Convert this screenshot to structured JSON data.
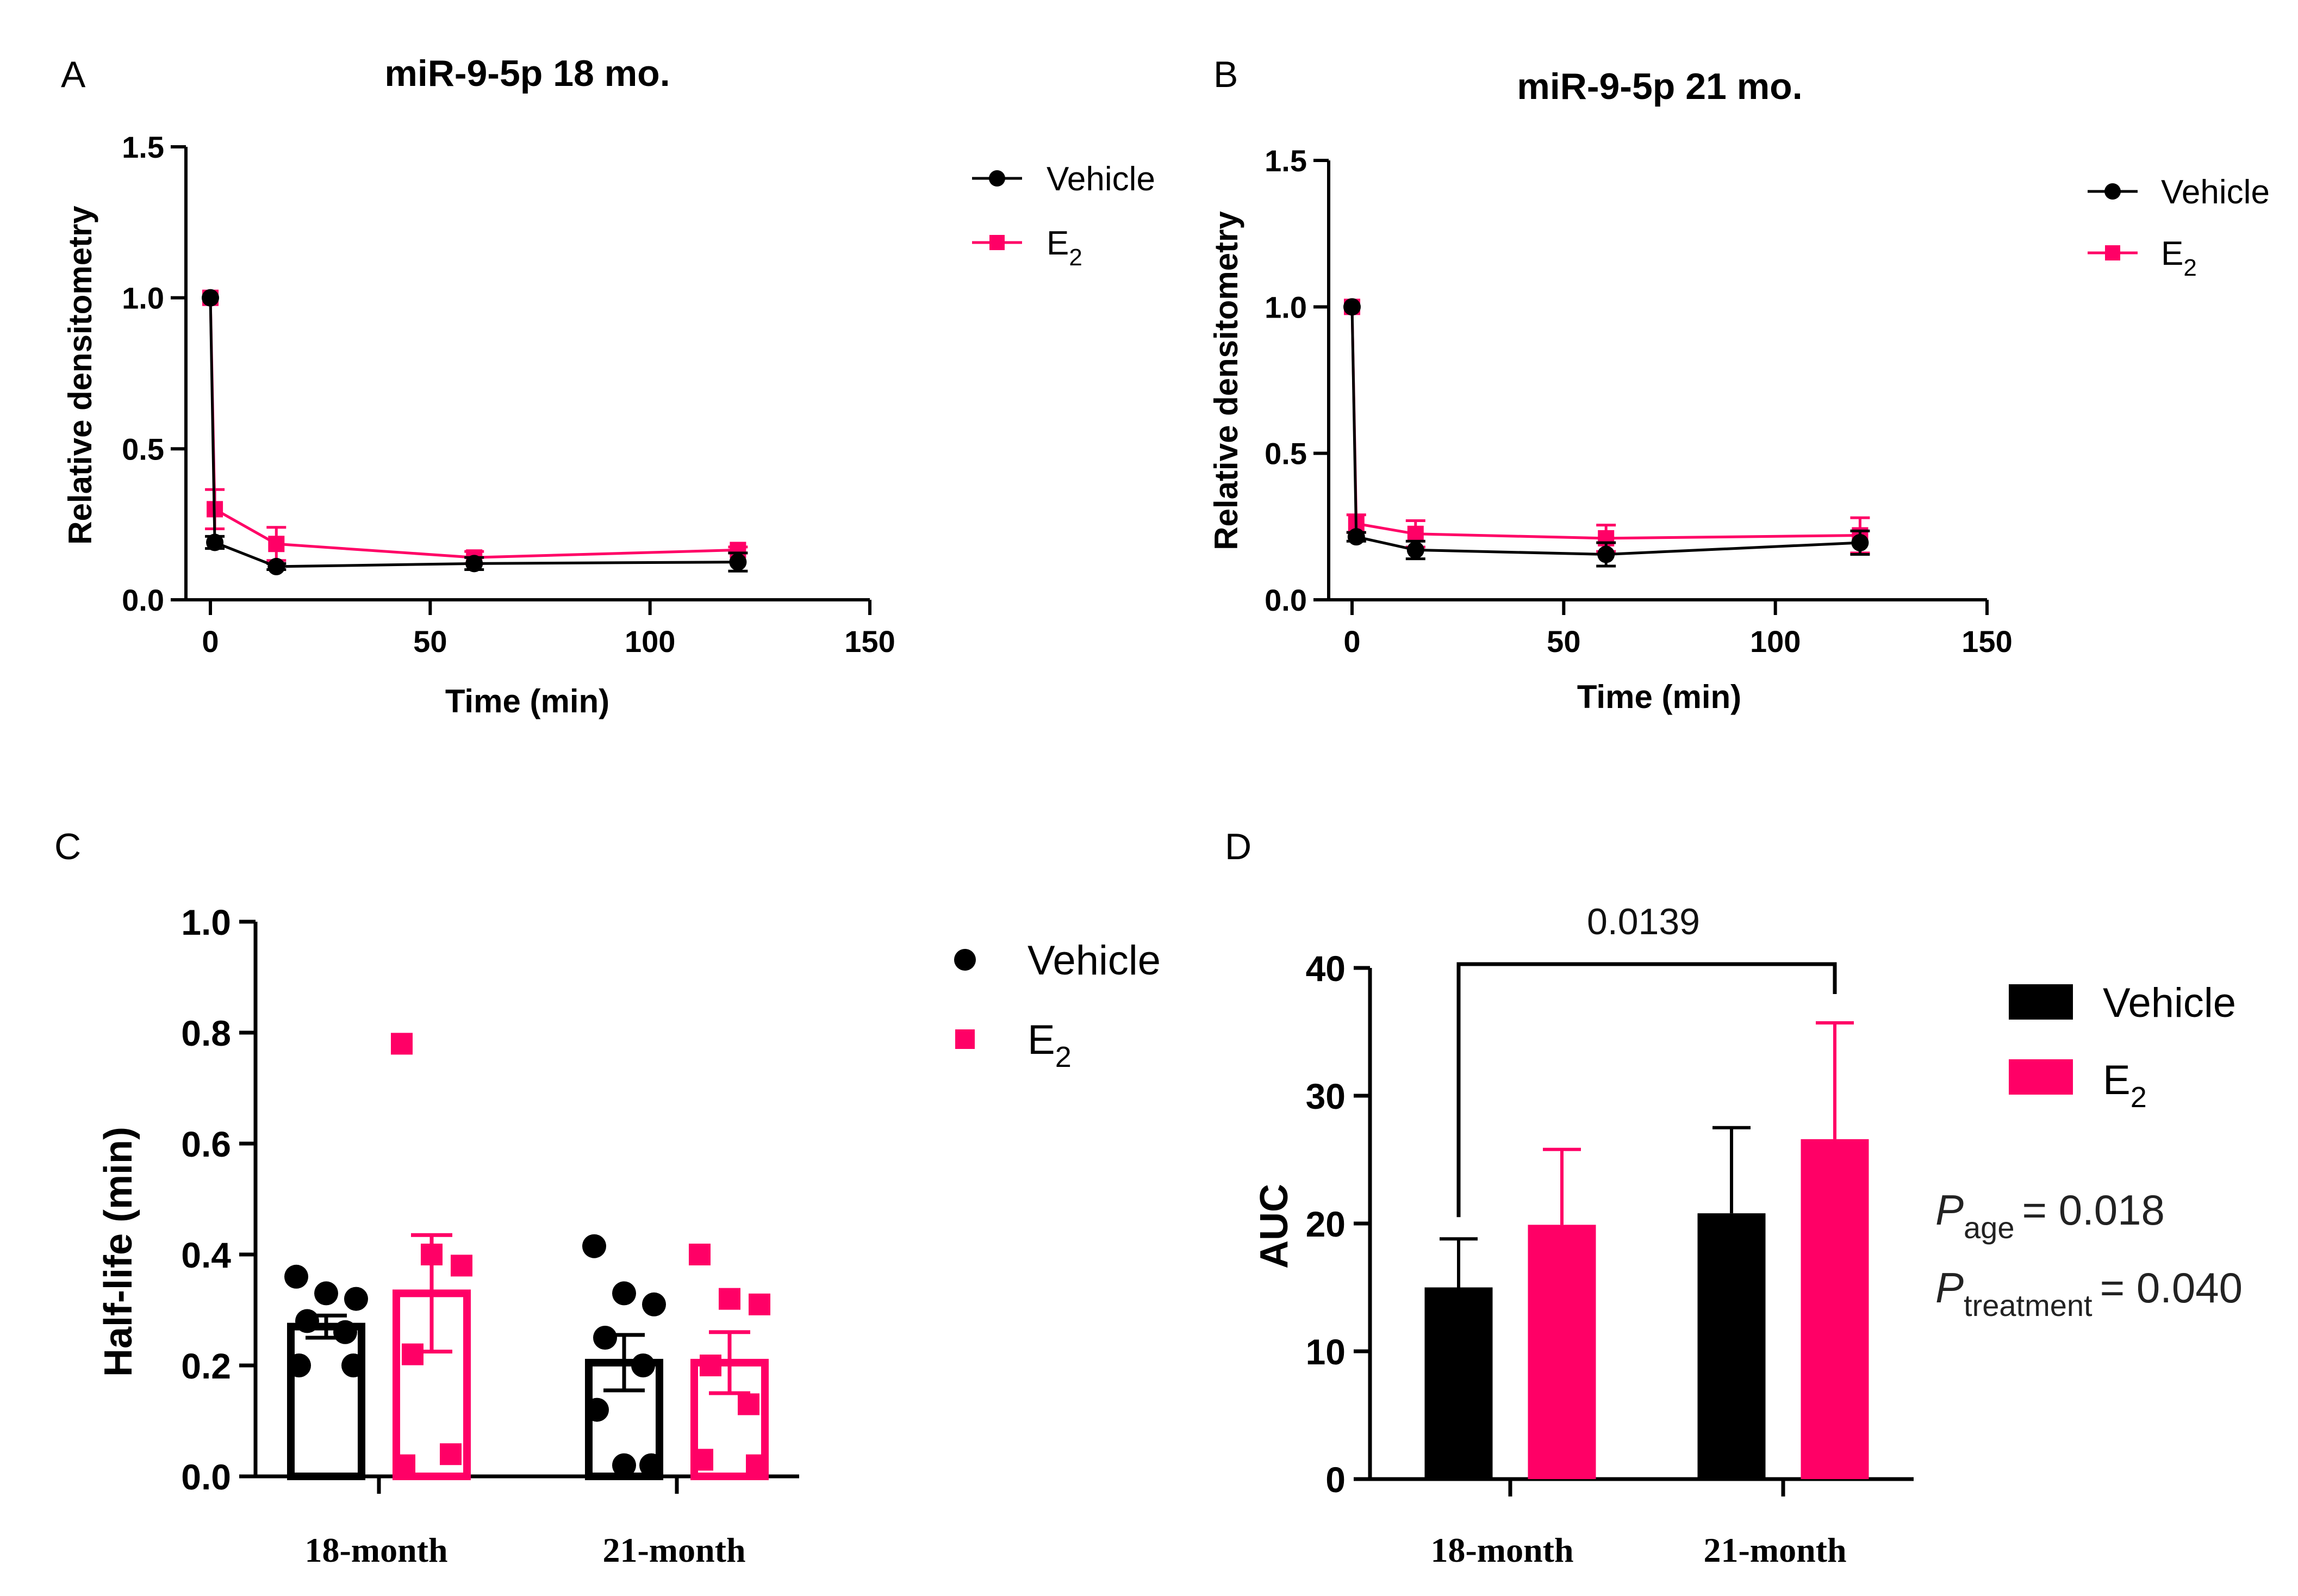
{
  "colors": {
    "vehicle": "#000000",
    "e2": "#ff0066",
    "axis": "#000000"
  },
  "chart_data": [
    {
      "panel": "A",
      "type": "line",
      "title": "miR-9-5p 18 mo.",
      "xlabel": "Time (min)",
      "ylabel": "Relative densitometry",
      "xlim": [
        0,
        150
      ],
      "ylim": [
        0,
        1.5
      ],
      "xticks": [
        "0",
        "50",
        "100",
        "150"
      ],
      "yticks": [
        "0.0",
        "0.5",
        "1.0",
        "1.5"
      ],
      "legend": {
        "position": "right",
        "vehicle": "Vehicle",
        "e2_base": "E",
        "e2_sub": "2"
      },
      "series": [
        {
          "name": "Vehicle",
          "x": [
            0,
            1,
            15,
            60,
            120
          ],
          "values": [
            1.0,
            0.19,
            0.11,
            0.12,
            0.125
          ],
          "err": [
            0,
            0.02,
            0.01,
            0.02,
            0.03
          ]
        },
        {
          "name": "E2",
          "x": [
            0,
            1,
            15,
            60,
            120
          ],
          "values": [
            1.0,
            0.3,
            0.185,
            0.14,
            0.165
          ],
          "err": [
            0,
            0.065,
            0.055,
            0.02,
            0.01
          ]
        }
      ]
    },
    {
      "panel": "B",
      "type": "line",
      "title": "miR-9-5p 21 mo.",
      "xlabel": "Time (min)",
      "ylabel": "Relative densitometry",
      "xlim": [
        0,
        150
      ],
      "ylim": [
        0,
        1.5
      ],
      "xticks": [
        "0",
        "50",
        "100",
        "150"
      ],
      "yticks": [
        "0.0",
        "0.5",
        "1.0",
        "1.5"
      ],
      "legend": {
        "position": "right",
        "vehicle": "Vehicle",
        "e2_base": "E",
        "e2_sub": "2"
      },
      "series": [
        {
          "name": "Vehicle",
          "x": [
            0,
            1,
            15,
            60,
            120
          ],
          "values": [
            1.0,
            0.215,
            0.17,
            0.155,
            0.195
          ],
          "err": [
            0,
            0.015,
            0.03,
            0.04,
            0.04
          ]
        },
        {
          "name": "E2",
          "x": [
            0,
            1,
            15,
            60,
            120
          ],
          "values": [
            1.0,
            0.26,
            0.225,
            0.21,
            0.22
          ],
          "err": [
            0,
            0.03,
            0.045,
            0.045,
            0.06
          ]
        }
      ]
    },
    {
      "panel": "C",
      "type": "bar",
      "ylabel": "Half-life (min)",
      "ylim": [
        0,
        1.0
      ],
      "yticks": [
        "0.0",
        "0.2",
        "0.4",
        "0.6",
        "0.8",
        "1.0"
      ],
      "categories": [
        "18-month",
        "21-month"
      ],
      "legend": {
        "position": "right",
        "vehicle": "Vehicle",
        "e2_base": "E",
        "e2_sub": "2"
      },
      "series": [
        {
          "name": "Vehicle",
          "values": [
            0.27,
            0.205
          ],
          "sem": [
            0.02,
            0.05
          ],
          "points": [
            [
              0.36,
              0.33,
              0.32,
              0.28,
              0.26,
              0.2,
              0.2
            ],
            [
              0.415,
              0.33,
              0.31,
              0.25,
              0.2,
              0.12,
              0.02,
              0.02
            ]
          ]
        },
        {
          "name": "E2",
          "values": [
            0.33,
            0.205
          ],
          "sem": [
            0.105,
            0.055
          ],
          "points": [
            [
              0.78,
              0.4,
              0.38,
              0.22,
              0.04,
              0.02
            ],
            [
              0.4,
              0.32,
              0.31,
              0.2,
              0.13,
              0.03,
              0.02
            ]
          ]
        }
      ]
    },
    {
      "panel": "D",
      "type": "bar",
      "ylabel": "AUC",
      "ylim": [
        0,
        40
      ],
      "yticks": [
        "0",
        "10",
        "20",
        "30",
        "40"
      ],
      "categories": [
        "18-month",
        "21-month"
      ],
      "legend": {
        "position": "right",
        "vehicle": "Vehicle",
        "e2_base": "E",
        "e2_sub": "2"
      },
      "series": [
        {
          "name": "Vehicle",
          "values": [
            15,
            20.8
          ],
          "err": [
            3.8,
            6.7
          ]
        },
        {
          "name": "E2",
          "values": [
            19.9,
            26.6
          ],
          "err": [
            5.9,
            9.1
          ]
        }
      ],
      "annotation": {
        "label": "0.0139",
        "from": "18-month Vehicle",
        "to": "21-month E2"
      },
      "stats": [
        {
          "sym": "P",
          "sub": "age",
          "text": "= 0.018"
        },
        {
          "sym": "P",
          "sub": "treatment",
          "text": "= 0.040"
        }
      ]
    }
  ]
}
